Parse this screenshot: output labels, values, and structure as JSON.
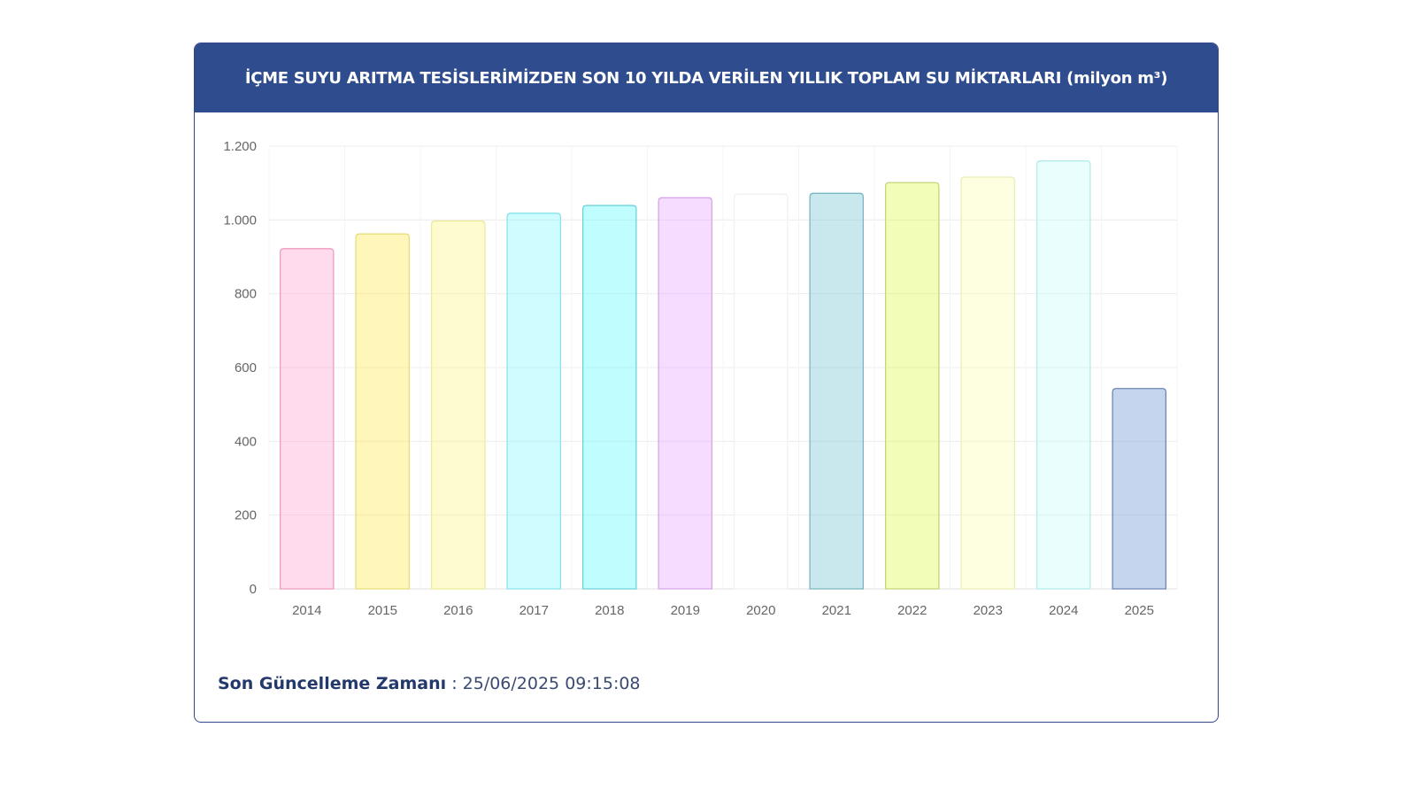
{
  "header": {
    "title": "İÇME SUYU ARITMA TESİSLERİMİZDEN SON 10 YILDA VERİLEN YILLIK TOPLAM SU MİKTARLARI (milyon m³)"
  },
  "footer": {
    "label": "Son Güncelleme Zamanı",
    "separator": " : ",
    "value": "25/06/2025 09:15:08"
  },
  "chart_data": {
    "type": "bar",
    "title": "İÇME SUYU ARITMA TESİSLERİMİZDEN SON 10 YILDA VERİLEN YILLIK TOPLAM SU MİKTARLARI (milyon m³)",
    "xlabel": "",
    "ylabel": "",
    "categories": [
      "2014",
      "2015",
      "2016",
      "2017",
      "2018",
      "2019",
      "2020",
      "2021",
      "2022",
      "2023",
      "2024",
      "2025"
    ],
    "values": [
      922,
      962,
      997,
      1018,
      1039,
      1060,
      1070,
      1072,
      1101,
      1116,
      1160,
      543
    ],
    "ylim": [
      0,
      1200
    ],
    "yticks": [
      0,
      200,
      400,
      600,
      800,
      1000,
      1200
    ],
    "ytick_labels": [
      "0",
      "200",
      "400",
      "600",
      "800",
      "1.000",
      "1.200"
    ],
    "grid": true,
    "legend": "none",
    "colors": {
      "fills": [
        "#ffdbed",
        "#fff6b9",
        "#fefcce",
        "#cffcff",
        "#c0fdff",
        "#f6dcff",
        "#ffffff",
        "#c8e8ee",
        "#f2fdb8",
        "#fefee1",
        "#e9fefd",
        "#c5d5ee"
      ],
      "strokes": [
        "#ee9cc0",
        "#e6de7a",
        "#ecea9c",
        "#86e4ea",
        "#6dd3da",
        "#d6a6e6",
        "#f1f1f1",
        "#7ab6c0",
        "#c6d47a",
        "#ecedb6",
        "#b4ecec",
        "#6d86b6"
      ]
    }
  }
}
